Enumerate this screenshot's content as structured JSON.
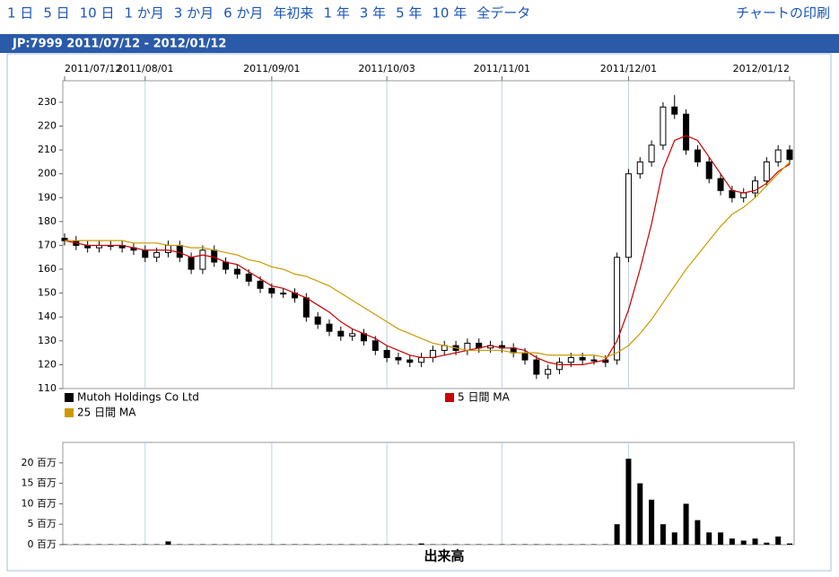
{
  "nav": [
    "1 日",
    "5 日",
    "10 日",
    "1 か月",
    "3 か月",
    "6 か月",
    "年初来",
    "1 年",
    "3 年",
    "5 年",
    "10 年",
    "全データ"
  ],
  "print": "チャートの印刷",
  "header": {
    "title": "JP:7999 2011/07/12 - 2012/01/12"
  },
  "chart_data": [
    {
      "type": "candlestick",
      "name": "Mutoh Holdings Co Ltd",
      "color": "#000000",
      "up_color": "#ffffff",
      "down_color": "#000000",
      "categories": [
        "2011/07/12",
        null,
        null,
        null,
        null,
        null,
        null,
        "2011/08/01",
        null,
        null,
        null,
        null,
        null,
        null,
        null,
        null,
        null,
        null,
        "2011/09/01",
        null,
        null,
        null,
        null,
        null,
        null,
        null,
        null,
        null,
        "2011/10/03",
        null,
        null,
        null,
        null,
        null,
        null,
        null,
        null,
        null,
        "2011/11/01",
        null,
        null,
        null,
        null,
        null,
        null,
        null,
        null,
        null,
        null,
        "2011/12/01",
        null,
        null,
        null,
        null,
        null,
        null,
        null,
        null,
        null,
        null,
        null,
        null,
        null,
        "2012/01/12"
      ],
      "open": [
        173,
        172,
        170,
        169,
        170,
        170,
        169,
        168,
        165,
        167,
        170,
        165,
        160,
        168,
        163,
        160,
        158,
        155,
        152,
        150,
        150,
        148,
        140,
        137,
        134,
        132,
        133,
        130,
        126,
        123,
        122,
        121,
        123,
        126,
        128,
        126,
        129,
        127,
        128,
        127,
        125,
        122,
        116,
        118,
        121,
        123,
        122,
        122,
        122,
        165,
        200,
        205,
        212,
        228,
        225,
        210,
        205,
        198,
        193,
        190,
        192,
        197,
        205,
        210
      ],
      "high": [
        175,
        174,
        172,
        172,
        172,
        172,
        171,
        170,
        169,
        172,
        172,
        167,
        170,
        170,
        165,
        162,
        160,
        157,
        154,
        152,
        152,
        150,
        142,
        139,
        136,
        135,
        135,
        132,
        128,
        125,
        124,
        125,
        128,
        130,
        130,
        131,
        131,
        130,
        130,
        129,
        127,
        124,
        120,
        123,
        125,
        125,
        124,
        124,
        167,
        202,
        207,
        214,
        230,
        233,
        227,
        212,
        207,
        200,
        195,
        194,
        199,
        207,
        212,
        212
      ],
      "low": [
        170,
        168,
        167,
        167,
        168,
        167,
        166,
        163,
        163,
        165,
        163,
        158,
        158,
        161,
        158,
        156,
        153,
        150,
        148,
        148,
        146,
        138,
        135,
        132,
        130,
        130,
        128,
        124,
        121,
        120,
        119,
        119,
        121,
        124,
        124,
        124,
        125,
        125,
        125,
        123,
        120,
        114,
        114,
        116,
        119,
        120,
        120,
        119,
        120,
        163,
        198,
        203,
        210,
        223,
        208,
        203,
        196,
        191,
        188,
        188,
        190,
        195,
        203,
        204
      ],
      "close": [
        172,
        170,
        169,
        170,
        170,
        169,
        168,
        165,
        167,
        170,
        165,
        160,
        168,
        163,
        160,
        158,
        155,
        152,
        150,
        150,
        148,
        140,
        137,
        134,
        132,
        133,
        130,
        126,
        123,
        122,
        121,
        123,
        126,
        128,
        126,
        129,
        127,
        128,
        127,
        125,
        122,
        116,
        118,
        121,
        123,
        122,
        122,
        121,
        165,
        200,
        205,
        212,
        228,
        225,
        210,
        205,
        198,
        193,
        190,
        192,
        197,
        205,
        210,
        206
      ],
      "series": [
        {
          "name": "5 日間 MA",
          "color": "#cc0000",
          "values": [
            172,
            171,
            170,
            170,
            170,
            170,
            169,
            168,
            168,
            168,
            167,
            165,
            166,
            165,
            163,
            162,
            159,
            156,
            153,
            152,
            150,
            148,
            145,
            142,
            138,
            135,
            133,
            131,
            128,
            126,
            124,
            123,
            123,
            124,
            125,
            126,
            127,
            128,
            127,
            127,
            126,
            123,
            121,
            120,
            120,
            120,
            121,
            122,
            130,
            143,
            160,
            179,
            202,
            214,
            216,
            214,
            207,
            200,
            193,
            192,
            193,
            196,
            201,
            204
          ]
        },
        {
          "name": "25 日間 MA",
          "color": "#cc9900",
          "values": [
            172,
            172,
            172,
            172,
            172,
            172,
            171,
            171,
            171,
            170,
            170,
            169,
            169,
            168,
            167,
            166,
            164,
            163,
            161,
            160,
            158,
            157,
            155,
            153,
            150,
            147,
            144,
            141,
            138,
            135,
            133,
            131,
            129,
            128,
            127,
            126,
            126,
            126,
            126,
            125,
            125,
            125,
            124,
            124,
            124,
            124,
            124,
            123,
            125,
            128,
            133,
            139,
            146,
            153,
            160,
            166,
            172,
            178,
            183,
            186,
            190,
            195,
            200,
            205
          ]
        }
      ],
      "ylim": [
        110,
        239
      ],
      "yticks": [
        110,
        120,
        130,
        140,
        150,
        160,
        170,
        180,
        190,
        200,
        210,
        220,
        230
      ],
      "xgrid": true
    },
    {
      "type": "bar",
      "title": "出来高",
      "color": "#000000",
      "values": [
        0.1,
        0.1,
        0.1,
        0.1,
        0.1,
        0.1,
        0.1,
        0.1,
        0.1,
        0.8,
        0.1,
        0.1,
        0.1,
        0.1,
        0.1,
        0.1,
        0.1,
        0.1,
        0.1,
        0.1,
        0.1,
        0.1,
        0.1,
        0.1,
        0.1,
        0.1,
        0.1,
        0.1,
        0.1,
        0.1,
        0.1,
        0.3,
        0.1,
        0.1,
        0.1,
        0.1,
        0.1,
        0.1,
        0.1,
        0.1,
        0.1,
        0.1,
        0.1,
        0.1,
        0.1,
        0.1,
        0.1,
        0.1,
        5,
        21,
        15,
        11,
        5,
        3,
        10,
        6,
        3,
        3,
        1.5,
        1,
        1.5,
        0.5,
        2,
        0.3
      ],
      "ylim": [
        0,
        25
      ],
      "yticks": [
        {
          "value": 0,
          "label": "0 百万"
        },
        {
          "value": 5,
          "label": "5 百万"
        },
        {
          "value": 10,
          "label": "10 百万"
        },
        {
          "value": 15,
          "label": "15 百万"
        },
        {
          "value": 20,
          "label": "20 百万"
        }
      ]
    }
  ]
}
